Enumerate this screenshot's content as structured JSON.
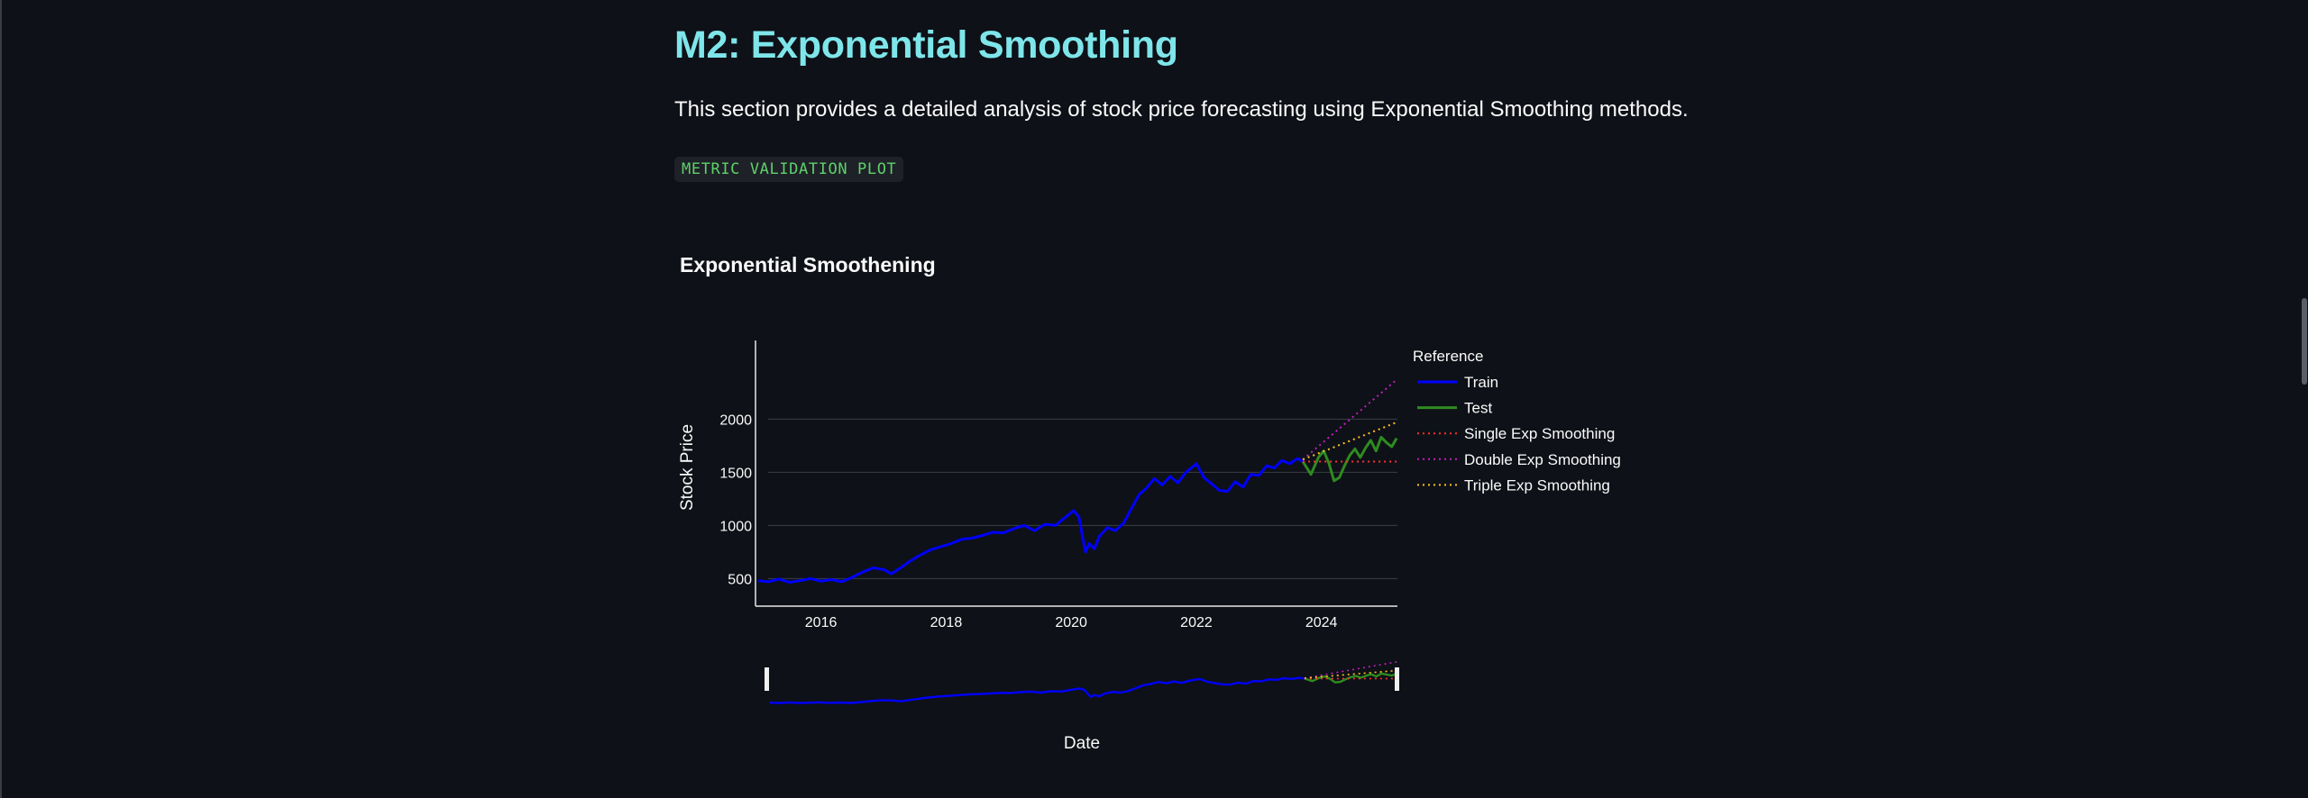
{
  "page": {
    "heading": "M2: Exponential Smoothing",
    "description": "This section provides a detailed analysis of stock price forecasting using Exponential Smoothing methods.",
    "code_label": "METRIC VALIDATION PLOT"
  },
  "colors": {
    "background": "#0e1117",
    "heading": "#7ee6ea",
    "code_text": "#5fd06a",
    "train": "#0000ff",
    "test": "#2e8b20",
    "single": "#ff3030",
    "double": "#c020c0",
    "triple": "#ffc020"
  },
  "chart_data": {
    "type": "line",
    "title": "Exponential Smoothening",
    "xlabel": "Date",
    "ylabel": "Stock Price",
    "xlim": [
      "2014-12-15",
      "2025-03-20"
    ],
    "ylim": [
      240,
      2740
    ],
    "xticks": [
      "2016",
      "2018",
      "2020",
      "2022",
      "2024"
    ],
    "yticks": [
      500,
      1000,
      1500,
      2000
    ],
    "grid": true,
    "legend_title": "Reference",
    "legend_position": "right",
    "range_slider": true,
    "series": [
      {
        "name": "Train",
        "style": "solid",
        "color": "#0000ff",
        "points": [
          [
            "2015-01-01",
            480
          ],
          [
            "2015-03-01",
            470
          ],
          [
            "2015-05-01",
            495
          ],
          [
            "2015-07-01",
            465
          ],
          [
            "2015-09-01",
            480
          ],
          [
            "2015-11-01",
            500
          ],
          [
            "2016-01-01",
            475
          ],
          [
            "2016-03-01",
            490
          ],
          [
            "2016-05-01",
            470
          ],
          [
            "2016-07-01",
            510
          ],
          [
            "2016-09-01",
            560
          ],
          [
            "2016-11-01",
            600
          ],
          [
            "2017-01-01",
            585
          ],
          [
            "2017-02-15",
            545
          ],
          [
            "2017-04-01",
            590
          ],
          [
            "2017-06-01",
            660
          ],
          [
            "2017-08-01",
            720
          ],
          [
            "2017-10-01",
            770
          ],
          [
            "2017-12-01",
            800
          ],
          [
            "2018-02-01",
            830
          ],
          [
            "2018-04-01",
            870
          ],
          [
            "2018-06-01",
            880
          ],
          [
            "2018-08-01",
            905
          ],
          [
            "2018-10-01",
            935
          ],
          [
            "2018-12-01",
            930
          ],
          [
            "2019-02-01",
            970
          ],
          [
            "2019-04-01",
            1000
          ],
          [
            "2019-06-01",
            950
          ],
          [
            "2019-08-01",
            1010
          ],
          [
            "2019-10-01",
            1000
          ],
          [
            "2019-12-01",
            1080
          ],
          [
            "2020-01-15",
            1140
          ],
          [
            "2020-02-15",
            1080
          ],
          [
            "2020-03-10",
            870
          ],
          [
            "2020-03-25",
            750
          ],
          [
            "2020-04-15",
            830
          ],
          [
            "2020-05-15",
            780
          ],
          [
            "2020-06-15",
            900
          ],
          [
            "2020-08-01",
            980
          ],
          [
            "2020-09-15",
            950
          ],
          [
            "2020-11-01",
            1020
          ],
          [
            "2020-12-15",
            1150
          ],
          [
            "2021-02-01",
            1290
          ],
          [
            "2021-03-15",
            1350
          ],
          [
            "2021-05-01",
            1440
          ],
          [
            "2021-06-15",
            1380
          ],
          [
            "2021-08-01",
            1460
          ],
          [
            "2021-09-15",
            1400
          ],
          [
            "2021-11-01",
            1500
          ],
          [
            "2022-01-01",
            1580
          ],
          [
            "2022-02-15",
            1450
          ],
          [
            "2022-04-01",
            1390
          ],
          [
            "2022-05-15",
            1330
          ],
          [
            "2022-07-01",
            1320
          ],
          [
            "2022-08-15",
            1410
          ],
          [
            "2022-10-01",
            1360
          ],
          [
            "2022-11-15",
            1480
          ],
          [
            "2023-01-01",
            1470
          ],
          [
            "2023-02-15",
            1560
          ],
          [
            "2023-04-01",
            1540
          ],
          [
            "2023-05-15",
            1610
          ],
          [
            "2023-07-01",
            1580
          ],
          [
            "2023-08-15",
            1630
          ],
          [
            "2023-09-15",
            1600
          ]
        ]
      },
      {
        "name": "Test",
        "style": "solid",
        "color": "#2e8b20",
        "points": [
          [
            "2023-09-15",
            1600
          ],
          [
            "2023-11-01",
            1480
          ],
          [
            "2023-12-15",
            1640
          ],
          [
            "2024-01-15",
            1700
          ],
          [
            "2024-02-15",
            1580
          ],
          [
            "2024-03-15",
            1420
          ],
          [
            "2024-04-15",
            1450
          ],
          [
            "2024-05-15",
            1560
          ],
          [
            "2024-06-15",
            1660
          ],
          [
            "2024-07-15",
            1720
          ],
          [
            "2024-08-15",
            1640
          ],
          [
            "2024-09-15",
            1730
          ],
          [
            "2024-10-15",
            1800
          ],
          [
            "2024-11-15",
            1700
          ],
          [
            "2024-12-15",
            1830
          ],
          [
            "2025-01-15",
            1780
          ],
          [
            "2025-02-15",
            1740
          ],
          [
            "2025-03-15",
            1820
          ]
        ]
      },
      {
        "name": "Single Exp Smoothing",
        "style": "dotted",
        "color": "#ff3030",
        "points": [
          [
            "2023-09-15",
            1600
          ],
          [
            "2025-03-15",
            1600
          ]
        ]
      },
      {
        "name": "Double Exp Smoothing",
        "style": "dotted",
        "color": "#c020c0",
        "points": [
          [
            "2023-09-15",
            1620
          ],
          [
            "2025-03-15",
            2370
          ]
        ]
      },
      {
        "name": "Triple Exp Smoothing",
        "style": "dotted",
        "color": "#ffc020",
        "points": [
          [
            "2023-09-15",
            1620
          ],
          [
            "2025-03-15",
            1970
          ]
        ]
      }
    ]
  }
}
